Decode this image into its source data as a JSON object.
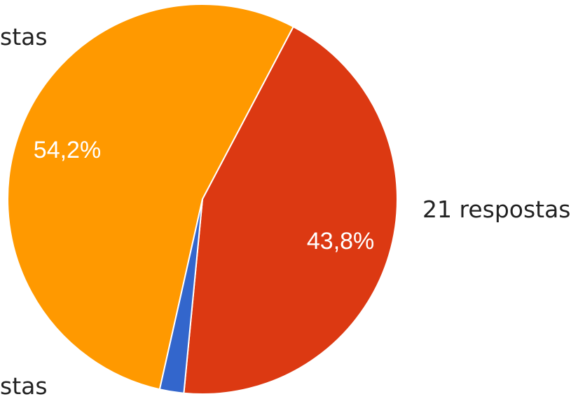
{
  "chart_data": {
    "type": "pie",
    "title": "",
    "slices": [
      {
        "label": "",
        "value": 54.2,
        "display": "54,2%",
        "color": "#FF9900",
        "side_label": "stas"
      },
      {
        "label": "",
        "value": 43.8,
        "display": "43,8%",
        "color": "#DC3912",
        "side_label": "stas"
      },
      {
        "label": "",
        "value": 2.0,
        "display": "",
        "color": "#3366CC",
        "side_label": "21 respostas"
      }
    ],
    "legend": "none"
  }
}
